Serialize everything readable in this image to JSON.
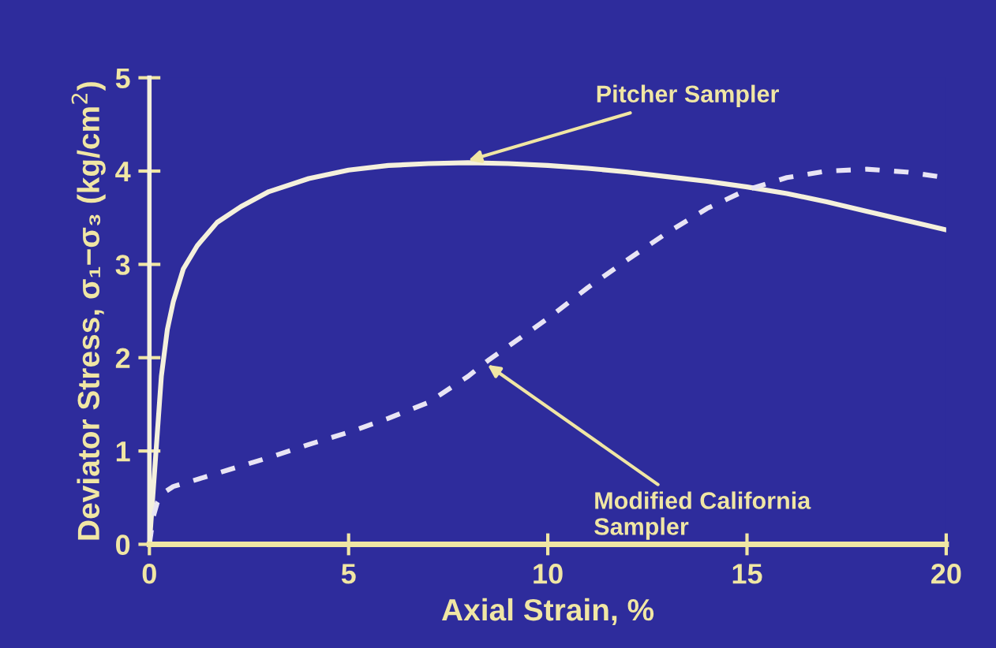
{
  "chart_data": {
    "type": "line",
    "xlabel": "Axial Strain, %",
    "ylabel": "Deviator Stress, σ₁−σ₃ (kg/cm$^{2}$)",
    "xlim": [
      0,
      20
    ],
    "ylim": [
      0,
      5
    ],
    "xticks": [
      0,
      5,
      10,
      15,
      20
    ],
    "yticks": [
      0,
      1,
      2,
      3,
      4,
      5
    ],
    "grid": false,
    "legend": false,
    "series": [
      {
        "color": "#f4f0dc",
        "line_style": "solid",
        "x": [
          0,
          0.1,
          0.2,
          0.3,
          0.45,
          0.6,
          0.85,
          1.2,
          1.7,
          2.3,
          3,
          4,
          5,
          6,
          7,
          8,
          9,
          10,
          11,
          12,
          13,
          14,
          15,
          16,
          17,
          18,
          19,
          20
        ],
        "values": [
          0,
          0.6,
          1.2,
          1.8,
          2.3,
          2.6,
          2.95,
          3.2,
          3.45,
          3.62,
          3.78,
          3.92,
          4.01,
          4.06,
          4.08,
          4.09,
          4.08,
          4.06,
          4.03,
          3.99,
          3.94,
          3.89,
          3.83,
          3.76,
          3.67,
          3.57,
          3.47,
          3.37
        ]
      },
      {
        "color": "#e8e4f4",
        "line_style": "dashed",
        "x": [
          0,
          0.1,
          0.2,
          0.35,
          0.6,
          1,
          2,
          3,
          4,
          5,
          6,
          7,
          8,
          8.5,
          9,
          10,
          11,
          12,
          13,
          14,
          15,
          16,
          17,
          18,
          19,
          20
        ],
        "values": [
          0,
          0.3,
          0.45,
          0.55,
          0.62,
          0.67,
          0.8,
          0.93,
          1.07,
          1.2,
          1.35,
          1.52,
          1.8,
          1.97,
          2.12,
          2.42,
          2.75,
          3.05,
          3.34,
          3.6,
          3.8,
          3.93,
          4.0,
          4.02,
          3.99,
          3.93
        ]
      }
    ],
    "annotations": [
      {
        "text": "Pitcher Sampler",
        "x": 7.9,
        "y": 4.1
      },
      {
        "text": "Modified California\nSampler",
        "x": 8.4,
        "y": 1.95
      }
    ]
  }
}
